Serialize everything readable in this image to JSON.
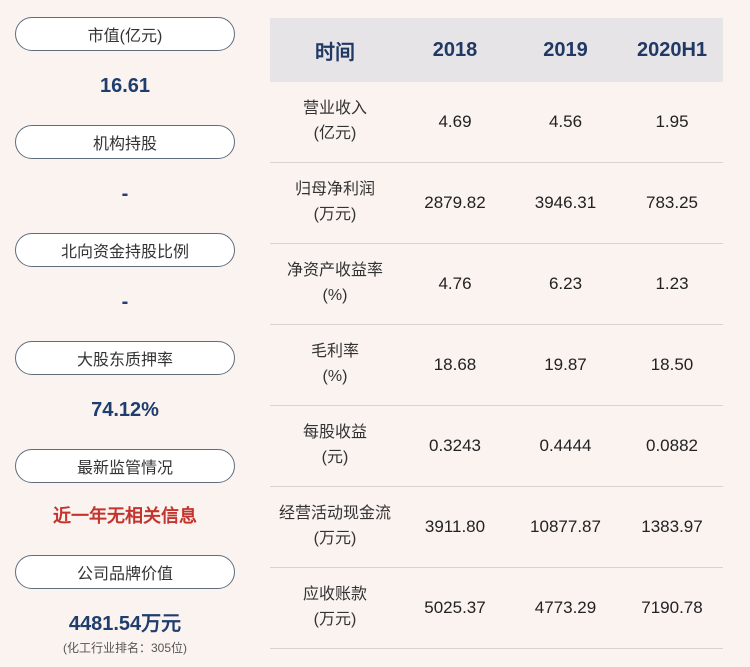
{
  "sidebar": {
    "items": [
      {
        "label": "市值(亿元)",
        "value": "16.61"
      },
      {
        "label": "机构持股",
        "value": "-"
      },
      {
        "label": "北向资金持股比例",
        "value": "-"
      },
      {
        "label": "大股东质押率",
        "value": "74.12%"
      },
      {
        "label": "最新监管情况",
        "value": "近一年无相关信息"
      },
      {
        "label": "公司品牌价值",
        "value": "4481.54万元",
        "subvalue": "(化工行业排名：305位)"
      }
    ]
  },
  "table": {
    "header": {
      "col0": "时间",
      "cols": [
        "2018",
        "2019",
        "2020H1"
      ]
    },
    "rows": [
      {
        "label": "营业收入",
        "unit": "(亿元)",
        "values": [
          "4.69",
          "4.56",
          "1.95"
        ]
      },
      {
        "label": "归母净利润",
        "unit": "(万元)",
        "values": [
          "2879.82",
          "3946.31",
          "783.25"
        ]
      },
      {
        "label": "净资产收益率",
        "unit": "(%)",
        "values": [
          "4.76",
          "6.23",
          "1.23"
        ]
      },
      {
        "label": "毛利率",
        "unit": "(%)",
        "values": [
          "18.68",
          "19.87",
          "18.50"
        ]
      },
      {
        "label": "每股收益",
        "unit": "(元)",
        "values": [
          "0.3243",
          "0.4444",
          "0.0882"
        ]
      },
      {
        "label": "经营活动现金流",
        "unit": "(万元)",
        "values": [
          "3911.80",
          "10877.87",
          "1383.97"
        ]
      },
      {
        "label": "应收账款",
        "unit": "(万元)",
        "values": [
          "5025.37",
          "4773.29",
          "7190.78"
        ]
      }
    ]
  },
  "colors": {
    "background": "#faf3f0",
    "accent_blue": "#1f3d6d",
    "alert_red": "#c5342c",
    "header_bg": "#e6e4e7",
    "header_text": "#203864",
    "pill_border": "#5f6d7d"
  }
}
